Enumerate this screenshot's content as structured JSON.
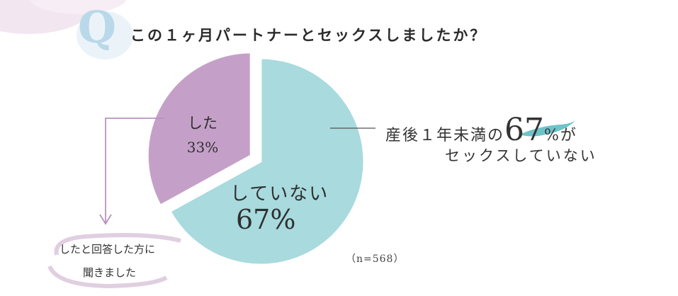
{
  "header": {
    "q_letter": "Q",
    "question": "この１ヶ月パートナーとセックスしましたか？"
  },
  "callout": {
    "prefix": "産後１年未満の",
    "big": "67",
    "pct_sign": "%",
    "suffix": "が",
    "line2": "セックスしていない"
  },
  "note": {
    "line1": "したと回答した方に",
    "line2": "聞きました"
  },
  "sample": "（n=568）",
  "colors": {
    "did": "#c4a0c8",
    "not": "#a8dade",
    "separator": "#ffffff",
    "accent_line": "#b793bf",
    "brush": "#5ebcc3",
    "q_letter": "#b9d9ea"
  },
  "chart_data": {
    "type": "pie",
    "slices": [
      {
        "label": "した",
        "value": 33,
        "value_label": "33%",
        "color": "#c4a0c8",
        "exploded": true
      },
      {
        "label": "していない",
        "value": 67,
        "value_label": "67%",
        "color": "#a8dade",
        "exploded": false
      }
    ],
    "start": "top, clockwise from 12 o'clock for していない"
  }
}
